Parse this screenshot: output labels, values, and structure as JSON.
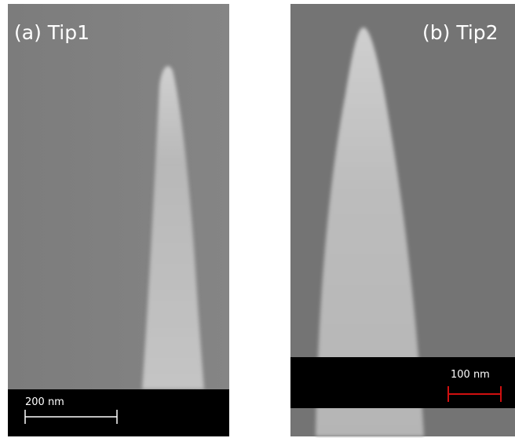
{
  "panels": [
    {
      "label": "(a) Tip1",
      "scale_bar": "200 nm"
    },
    {
      "label": "(b) Tip2",
      "scale_bar": "100 nm"
    }
  ]
}
